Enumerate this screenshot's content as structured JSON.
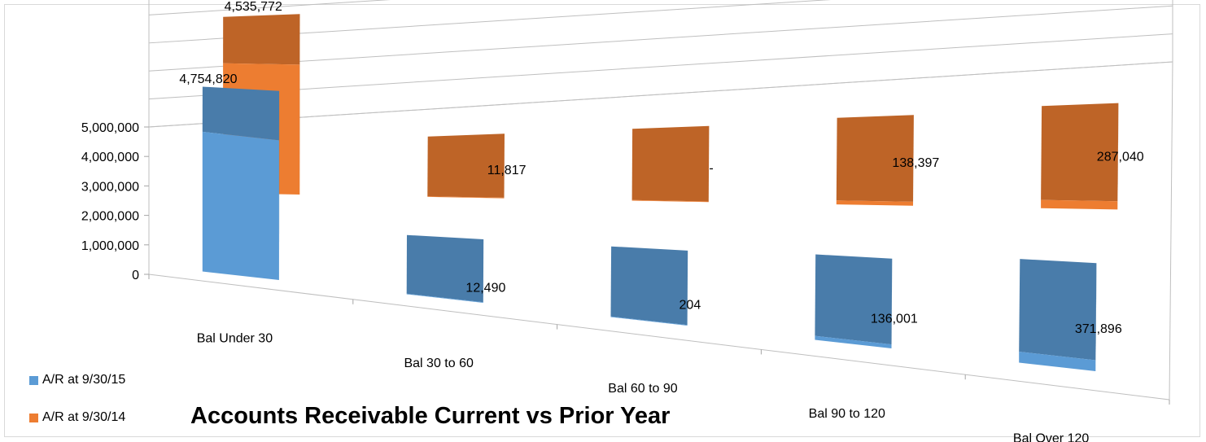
{
  "chart_data": {
    "type": "bar",
    "title": "Accounts Receivable Current vs Prior Year",
    "categories": [
      "Bal Under 30",
      "Bal 30 to 60",
      "Bal 60 to 90",
      "Bal 90 to 120",
      "Bal Over 120"
    ],
    "series": [
      {
        "name": "A/R at 9/30/15",
        "values": [
          4754820,
          12490,
          204,
          136001,
          371896
        ],
        "labels": [
          "4,754,820",
          "12,490",
          "204",
          "136,001",
          "371,896"
        ],
        "color": "#5b9bd5"
      },
      {
        "name": "A/R at 9/30/14",
        "values": [
          4535772,
          11817,
          0,
          138397,
          287040
        ],
        "labels": [
          "4,535,772",
          "11,817",
          "-",
          "138,397",
          "287,040"
        ],
        "color": "#ed7d31"
      }
    ],
    "y_ticks": [
      "0",
      "1,000,000",
      "2,000,000",
      "3,000,000",
      "4,000,000",
      "5,000,000"
    ],
    "ylim": [
      0,
      5000000
    ],
    "xlabel": "",
    "ylabel": "",
    "grid": true,
    "legend_position": "bottom-left",
    "style": "3d-column"
  }
}
